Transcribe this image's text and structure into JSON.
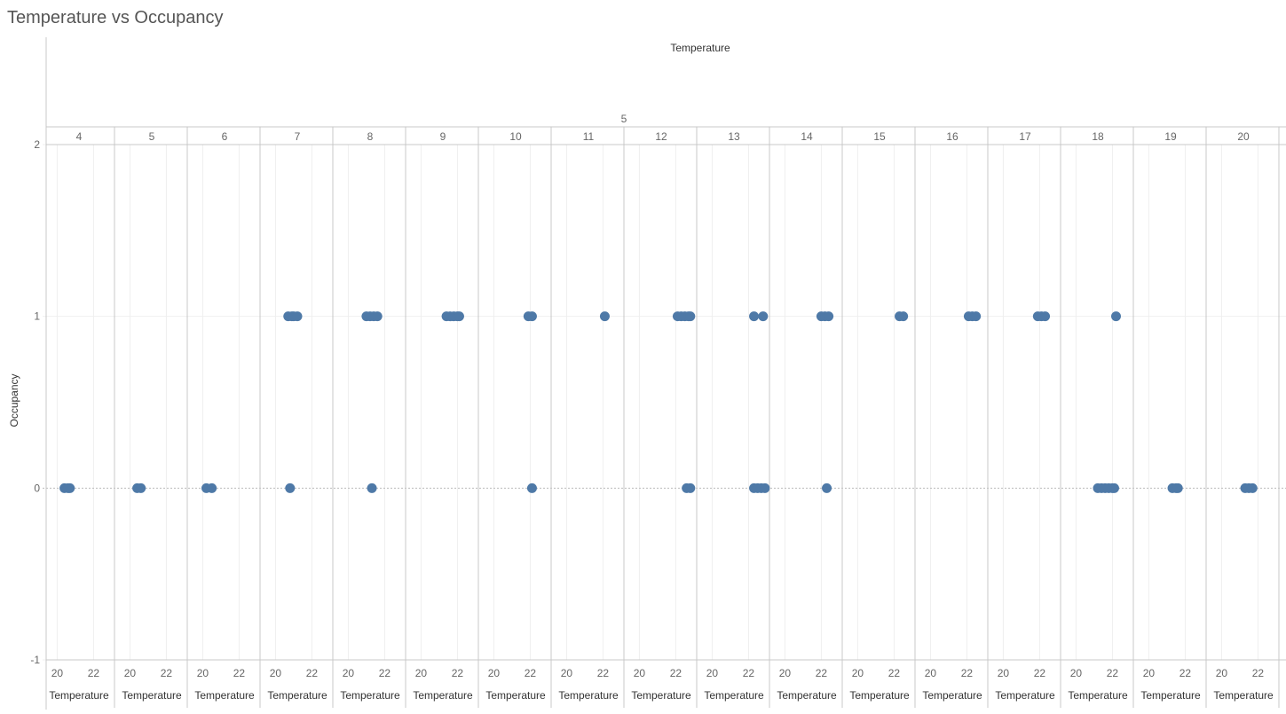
{
  "title": "Temperature vs Occupancy",
  "chart_data": {
    "type": "scatter",
    "title": "Temperature vs Occupancy",
    "top_header": "Temperature",
    "group_header": "5",
    "xlabel": "Temperature",
    "ylabel": "Occupancy",
    "ylim": [
      -1,
      2
    ],
    "yticks": [
      2,
      1,
      0,
      -1
    ],
    "xlim": [
      19.2,
      23.2
    ],
    "xticks": [
      20,
      22
    ],
    "grid": true,
    "panels": [
      {
        "label": "4",
        "points": [
          {
            "x": 20.4,
            "y": 0
          },
          {
            "x": 20.6,
            "y": 0
          },
          {
            "x": 20.7,
            "y": 0
          }
        ]
      },
      {
        "label": "5",
        "points": [
          {
            "x": 20.4,
            "y": 0
          },
          {
            "x": 20.6,
            "y": 0
          }
        ]
      },
      {
        "label": "6",
        "points": [
          {
            "x": 20.2,
            "y": 0
          },
          {
            "x": 20.5,
            "y": 0
          }
        ]
      },
      {
        "label": "7",
        "points": [
          {
            "x": 20.7,
            "y": 1
          },
          {
            "x": 20.9,
            "y": 1
          },
          {
            "x": 21.0,
            "y": 1
          },
          {
            "x": 21.2,
            "y": 1
          },
          {
            "x": 20.8,
            "y": 0
          }
        ]
      },
      {
        "label": "8",
        "points": [
          {
            "x": 21.0,
            "y": 1
          },
          {
            "x": 21.2,
            "y": 1
          },
          {
            "x": 21.4,
            "y": 1
          },
          {
            "x": 21.6,
            "y": 1
          },
          {
            "x": 21.3,
            "y": 0
          }
        ]
      },
      {
        "label": "9",
        "points": [
          {
            "x": 21.4,
            "y": 1
          },
          {
            "x": 21.6,
            "y": 1
          },
          {
            "x": 21.8,
            "y": 1
          },
          {
            "x": 22.0,
            "y": 1
          },
          {
            "x": 22.1,
            "y": 1
          }
        ]
      },
      {
        "label": "10",
        "points": [
          {
            "x": 21.9,
            "y": 1
          },
          {
            "x": 22.1,
            "y": 1
          },
          {
            "x": 22.1,
            "y": 0
          }
        ]
      },
      {
        "label": "11",
        "points": [
          {
            "x": 22.1,
            "y": 1
          }
        ]
      },
      {
        "label": "12",
        "points": [
          {
            "x": 22.1,
            "y": 1
          },
          {
            "x": 22.3,
            "y": 1
          },
          {
            "x": 22.5,
            "y": 1
          },
          {
            "x": 22.7,
            "y": 1
          },
          {
            "x": 22.8,
            "y": 1
          },
          {
            "x": 22.6,
            "y": 0
          },
          {
            "x": 22.8,
            "y": 0
          }
        ]
      },
      {
        "label": "13",
        "points": [
          {
            "x": 22.3,
            "y": 1
          },
          {
            "x": 22.8,
            "y": 1
          },
          {
            "x": 22.3,
            "y": 0
          },
          {
            "x": 22.5,
            "y": 0
          },
          {
            "x": 22.7,
            "y": 0
          },
          {
            "x": 22.9,
            "y": 0
          }
        ]
      },
      {
        "label": "14",
        "points": [
          {
            "x": 22.0,
            "y": 1
          },
          {
            "x": 22.2,
            "y": 1
          },
          {
            "x": 22.4,
            "y": 1
          },
          {
            "x": 22.3,
            "y": 0
          }
        ]
      },
      {
        "label": "15",
        "points": [
          {
            "x": 22.3,
            "y": 1
          },
          {
            "x": 22.5,
            "y": 1
          }
        ]
      },
      {
        "label": "16",
        "points": [
          {
            "x": 22.1,
            "y": 1
          },
          {
            "x": 22.3,
            "y": 1
          },
          {
            "x": 22.5,
            "y": 1
          }
        ]
      },
      {
        "label": "17",
        "points": [
          {
            "x": 21.9,
            "y": 1
          },
          {
            "x": 22.1,
            "y": 1
          },
          {
            "x": 22.3,
            "y": 1
          }
        ]
      },
      {
        "label": "18",
        "points": [
          {
            "x": 22.2,
            "y": 1
          },
          {
            "x": 21.2,
            "y": 0
          },
          {
            "x": 21.4,
            "y": 0
          },
          {
            "x": 21.6,
            "y": 0
          },
          {
            "x": 21.8,
            "y": 0
          },
          {
            "x": 22.0,
            "y": 0
          },
          {
            "x": 22.1,
            "y": 0
          }
        ]
      },
      {
        "label": "19",
        "points": [
          {
            "x": 21.3,
            "y": 0
          },
          {
            "x": 21.5,
            "y": 0
          },
          {
            "x": 21.6,
            "y": 0
          }
        ]
      },
      {
        "label": "20",
        "points": [
          {
            "x": 21.3,
            "y": 0
          },
          {
            "x": 21.5,
            "y": 0
          },
          {
            "x": 21.7,
            "y": 0
          }
        ]
      }
    ],
    "colors": {
      "point": "#4e79a7",
      "grid": "#efefef",
      "divider": "#c8c8c8",
      "zero_line": "#bbbbbb"
    }
  }
}
